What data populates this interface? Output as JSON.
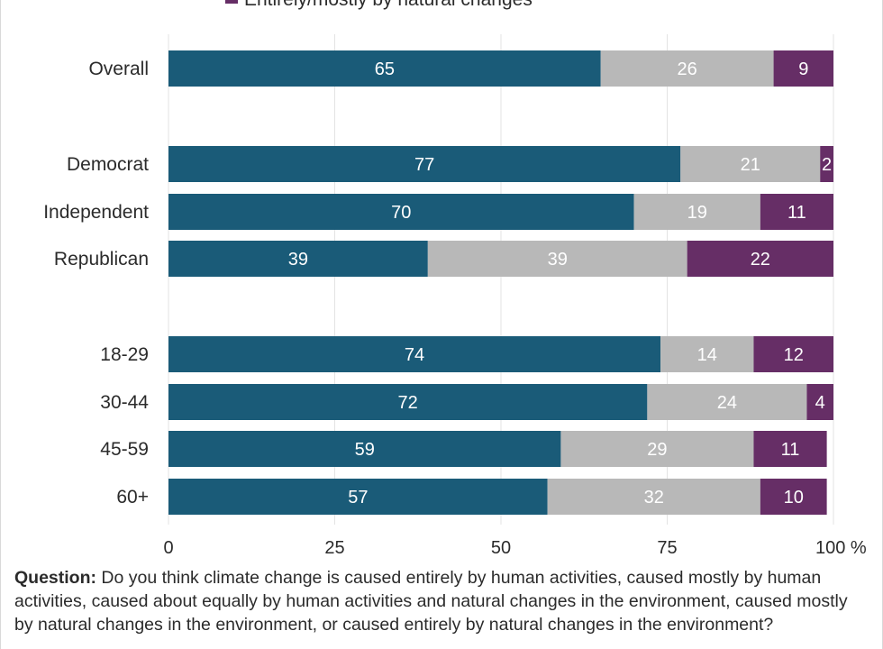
{
  "legend": {
    "item": "Entirely/mostly by natural changes"
  },
  "question": {
    "label": "Question:",
    "text": " Do you think climate change is caused entirely by human activities, caused mostly by human activities, caused about equally by human activities and natural changes in the environment, caused mostly by natural changes in the environment, or caused entirely by natural changes in the environment?"
  },
  "colors": {
    "human": "#1a5b78",
    "equal": "#b8b8b8",
    "natural": "#662e66"
  },
  "chart_data": {
    "type": "bar",
    "orientation": "horizontal",
    "stacked": true,
    "categories": [
      "Overall",
      "Democrat",
      "Independent",
      "Republican",
      "18-29",
      "30-44",
      "45-59",
      "60+"
    ],
    "groups": [
      [
        "Overall"
      ],
      [
        "Democrat",
        "Independent",
        "Republican"
      ],
      [
        "18-29",
        "30-44",
        "45-59",
        "60+"
      ]
    ],
    "series": [
      {
        "values": [
          65,
          77,
          70,
          39,
          74,
          72,
          59,
          57
        ],
        "color": "#1a5b78"
      },
      {
        "values": [
          26,
          21,
          19,
          39,
          14,
          24,
          29,
          32
        ],
        "color": "#b8b8b8"
      },
      {
        "name": "Entirely/mostly by natural changes",
        "values": [
          9,
          2,
          11,
          22,
          12,
          4,
          11,
          10
        ],
        "color": "#662e66"
      }
    ],
    "xlim": [
      0,
      100
    ],
    "xticks": [
      "0",
      "25",
      "50",
      "75",
      "100 %"
    ],
    "grid": true,
    "legend_position": "top"
  }
}
